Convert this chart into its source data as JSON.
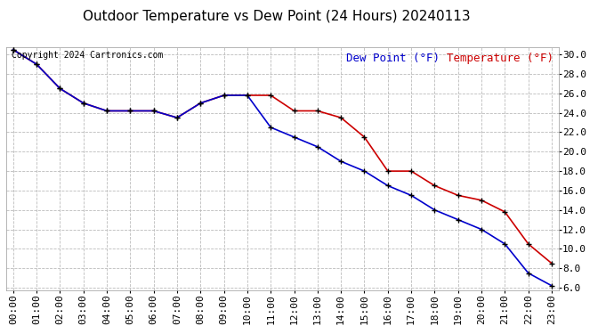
{
  "title": "Outdoor Temperature vs Dew Point (24 Hours) 20240113",
  "copyright_text": "Copyright 2024 Cartronics.com",
  "legend_dew_point": "Dew Point (°F)",
  "legend_temperature": "Temperature (°F)",
  "x_labels": [
    "00:00",
    "01:00",
    "02:00",
    "03:00",
    "04:00",
    "05:00",
    "06:00",
    "07:00",
    "08:00",
    "09:00",
    "10:00",
    "11:00",
    "12:00",
    "13:00",
    "14:00",
    "15:00",
    "16:00",
    "17:00",
    "18:00",
    "19:00",
    "20:00",
    "21:00",
    "22:00",
    "23:00"
  ],
  "temperature": [
    30.5,
    29.0,
    26.5,
    25.0,
    24.2,
    24.2,
    24.2,
    23.5,
    25.0,
    25.8,
    25.8,
    25.8,
    24.2,
    24.2,
    23.5,
    21.5,
    18.0,
    18.0,
    16.5,
    15.5,
    15.0,
    13.8,
    10.5,
    8.5
  ],
  "dew_point": [
    30.5,
    29.0,
    26.5,
    25.0,
    24.2,
    24.2,
    24.2,
    23.5,
    25.0,
    25.8,
    25.8,
    22.5,
    21.5,
    20.5,
    19.0,
    18.0,
    16.5,
    15.5,
    14.0,
    13.0,
    12.0,
    10.5,
    7.5,
    6.2
  ],
  "ylim_min": 6.0,
  "ylim_max": 30.0,
  "yticks": [
    6.0,
    8.0,
    10.0,
    12.0,
    14.0,
    16.0,
    18.0,
    20.0,
    22.0,
    24.0,
    26.0,
    28.0,
    30.0
  ],
  "temp_color": "#cc0000",
  "dew_color": "#0000cc",
  "marker_color": "#000000",
  "bg_color": "#ffffff",
  "grid_color": "#bbbbbb",
  "title_fontsize": 11,
  "copyright_fontsize": 7,
  "axis_fontsize": 8,
  "legend_fontsize": 9
}
